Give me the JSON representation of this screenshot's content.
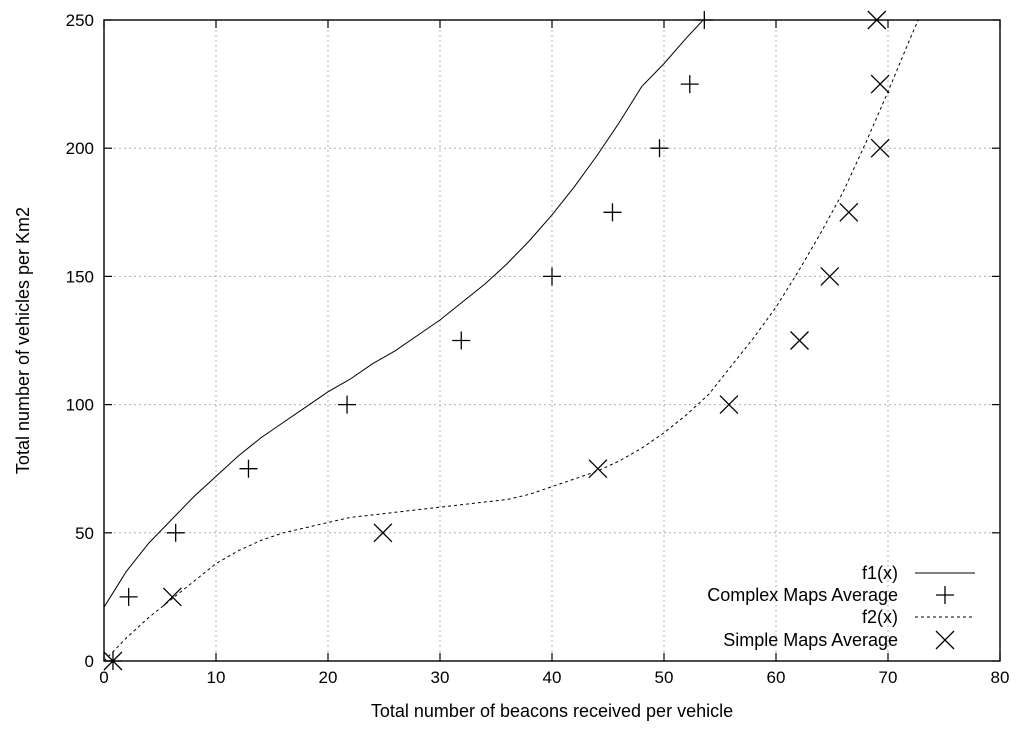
{
  "chart_data": {
    "type": "scatter",
    "xlabel": "Total number of beacons received per vehicle",
    "ylabel": "Total number of vehicles per Km2",
    "xlim": [
      0,
      80
    ],
    "ylim": [
      0,
      250
    ],
    "xticks": [
      0,
      10,
      20,
      30,
      40,
      50,
      60,
      70,
      80
    ],
    "yticks": [
      0,
      50,
      100,
      150,
      200,
      250
    ],
    "grid": true,
    "legend_position": "bottom-right",
    "series": [
      {
        "name": "f1(x)",
        "kind": "line",
        "style": "solid",
        "x": [
          0,
          2,
          4,
          6,
          8,
          10,
          12,
          14,
          16,
          18,
          20,
          22,
          24,
          26,
          28,
          30,
          32,
          34,
          36,
          38,
          40,
          42,
          44,
          46,
          48,
          50,
          52,
          53.5
        ],
        "y": [
          21,
          35,
          46,
          55,
          64,
          72,
          80,
          87,
          93,
          99,
          105,
          110,
          116,
          121,
          127,
          133,
          140,
          147,
          155,
          164,
          174,
          185,
          197,
          210,
          224,
          233,
          243,
          250
        ]
      },
      {
        "name": "Complex Maps Average",
        "kind": "points",
        "marker": "plus",
        "x": [
          0.8,
          2.2,
          6.4,
          12.9,
          21.7,
          31.9,
          40.0,
          45.4,
          49.6,
          52.3,
          53.6
        ],
        "y": [
          0,
          25,
          50,
          75,
          100,
          125,
          150,
          175,
          200,
          225,
          250
        ]
      },
      {
        "name": "f2(x)",
        "kind": "line",
        "style": "dashed",
        "x": [
          0,
          2,
          4,
          6,
          8,
          10,
          12,
          14,
          16,
          18,
          20,
          22,
          24,
          26,
          28,
          30,
          32,
          34,
          36,
          38,
          40,
          42,
          44,
          46,
          48,
          50,
          52,
          54,
          56,
          58,
          60,
          62,
          64,
          66,
          68,
          70,
          72,
          72.7
        ],
        "y": [
          0,
          9,
          17,
          24,
          31,
          38,
          43,
          47,
          50,
          52,
          54,
          56,
          57,
          58,
          59,
          60,
          61,
          62,
          63,
          65,
          68,
          71,
          74,
          78,
          83,
          89,
          96,
          104,
          115,
          126,
          138,
          152,
          167,
          183,
          202,
          222,
          243,
          250
        ]
      },
      {
        "name": "Simple Maps Average",
        "kind": "points",
        "marker": "cross",
        "x": [
          0.8,
          6.1,
          24.9,
          44.1,
          55.8,
          62.1,
          64.8,
          66.5,
          69.3,
          69.3,
          69.0
        ],
        "y": [
          0,
          25,
          50,
          75,
          100,
          125,
          150,
          175,
          200,
          225,
          250
        ]
      }
    ]
  }
}
